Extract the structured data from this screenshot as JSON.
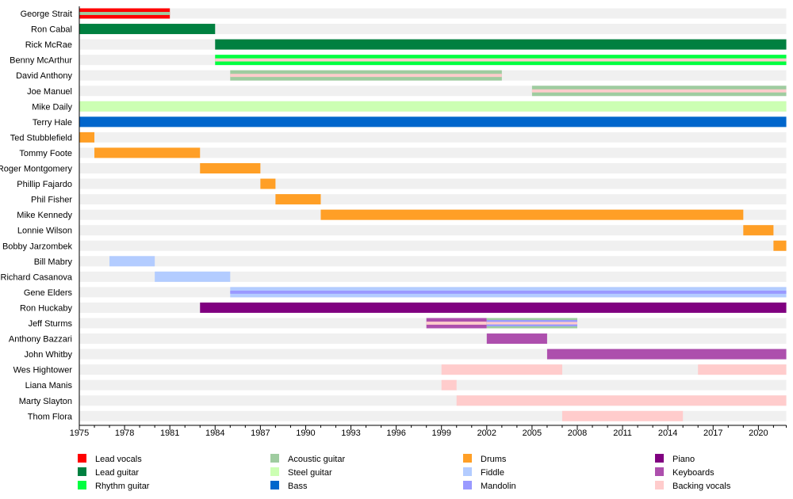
{
  "chart_data": {
    "type": "timeline",
    "title": "",
    "xlabel": "",
    "ylabel": "",
    "xlim": [
      1975,
      2021.85
    ],
    "x_ticks": [
      1975,
      1978,
      1981,
      1984,
      1987,
      1990,
      1993,
      1996,
      1999,
      2002,
      2005,
      2008,
      2011,
      2014,
      2017,
      2020
    ],
    "minor_tick_step": 1,
    "grid": false,
    "legend_position": "bottom",
    "roles": [
      {
        "key": "lead_vocals",
        "label": "Lead vocals",
        "color": "#ff0000"
      },
      {
        "key": "lead_guitar",
        "label": "Lead guitar",
        "color": "#008040"
      },
      {
        "key": "rhythm_guitar",
        "label": "Rhythm guitar",
        "color": "#00ff40"
      },
      {
        "key": "acoustic_guitar",
        "label": "Acoustic guitar",
        "color": "#9fcca0"
      },
      {
        "key": "steel_guitar",
        "label": "Steel guitar",
        "color": "#ccffb3"
      },
      {
        "key": "bass",
        "label": "Bass",
        "color": "#0066cc"
      },
      {
        "key": "drums",
        "label": "Drums",
        "color": "#ff9f26"
      },
      {
        "key": "fiddle",
        "label": "Fiddle",
        "color": "#b3ccff"
      },
      {
        "key": "mandolin",
        "label": "Mandolin",
        "color": "#9999ff"
      },
      {
        "key": "piano",
        "label": "Piano",
        "color": "#800080"
      },
      {
        "key": "keyboards",
        "label": "Keyboards",
        "color": "#ad4fad"
      },
      {
        "key": "backing_vocals",
        "label": "Backing vocals",
        "color": "#ffcccc"
      }
    ],
    "members": [
      {
        "name": "George Strait",
        "spans": [
          {
            "start": 1975,
            "end": 1981,
            "roles": [
              "lead_vocals",
              "acoustic_guitar"
            ]
          }
        ]
      },
      {
        "name": "Ron Cabal",
        "spans": [
          {
            "start": 1975,
            "end": 1984,
            "roles": [
              "lead_guitar"
            ]
          }
        ]
      },
      {
        "name": "Rick McRae",
        "spans": [
          {
            "start": 1984,
            "end": 2021.85,
            "roles": [
              "lead_guitar"
            ]
          }
        ]
      },
      {
        "name": "Benny McArthur",
        "spans": [
          {
            "start": 1984,
            "end": 2021.85,
            "roles": [
              "rhythm_guitar",
              "backing_vocals"
            ]
          }
        ]
      },
      {
        "name": "David Anthony",
        "spans": [
          {
            "start": 1985,
            "end": 2003,
            "roles": [
              "acoustic_guitar",
              "backing_vocals"
            ]
          }
        ]
      },
      {
        "name": "Joe Manuel",
        "spans": [
          {
            "start": 2005,
            "end": 2021.85,
            "roles": [
              "acoustic_guitar",
              "backing_vocals"
            ]
          }
        ]
      },
      {
        "name": "Mike Daily",
        "spans": [
          {
            "start": 1975,
            "end": 2021.85,
            "roles": [
              "steel_guitar"
            ]
          }
        ]
      },
      {
        "name": "Terry Hale",
        "spans": [
          {
            "start": 1975,
            "end": 2021.85,
            "roles": [
              "bass"
            ]
          }
        ]
      },
      {
        "name": "Ted Stubblefield",
        "spans": [
          {
            "start": 1975,
            "end": 1976,
            "roles": [
              "drums"
            ]
          }
        ]
      },
      {
        "name": "Tommy Foote",
        "spans": [
          {
            "start": 1976,
            "end": 1983,
            "roles": [
              "drums"
            ]
          }
        ]
      },
      {
        "name": "Roger Montgomery",
        "spans": [
          {
            "start": 1983,
            "end": 1987,
            "roles": [
              "drums"
            ]
          }
        ]
      },
      {
        "name": "Phillip Fajardo",
        "spans": [
          {
            "start": 1987,
            "end": 1988,
            "roles": [
              "drums"
            ]
          }
        ]
      },
      {
        "name": "Phil Fisher",
        "spans": [
          {
            "start": 1988,
            "end": 1991,
            "roles": [
              "drums"
            ]
          }
        ]
      },
      {
        "name": "Mike Kennedy",
        "spans": [
          {
            "start": 1991,
            "end": 2019,
            "roles": [
              "drums"
            ]
          }
        ]
      },
      {
        "name": "Lonnie Wilson",
        "spans": [
          {
            "start": 2019,
            "end": 2021,
            "roles": [
              "drums"
            ]
          }
        ]
      },
      {
        "name": "Bobby Jarzombek",
        "spans": [
          {
            "start": 2021,
            "end": 2021.85,
            "roles": [
              "drums"
            ]
          }
        ]
      },
      {
        "name": "Bill Mabry",
        "spans": [
          {
            "start": 1977,
            "end": 1980,
            "roles": [
              "fiddle"
            ]
          }
        ]
      },
      {
        "name": "Richard Casanova",
        "spans": [
          {
            "start": 1980,
            "end": 1985,
            "roles": [
              "fiddle"
            ]
          }
        ]
      },
      {
        "name": "Gene Elders",
        "spans": [
          {
            "start": 1985,
            "end": 2021.85,
            "roles": [
              "fiddle",
              "mandolin"
            ]
          }
        ]
      },
      {
        "name": "Ron Huckaby",
        "spans": [
          {
            "start": 1983,
            "end": 2021.85,
            "roles": [
              "piano"
            ]
          }
        ]
      },
      {
        "name": "Jeff Sturms",
        "spans": [
          {
            "start": 1998,
            "end": 2002,
            "roles": [
              "keyboards",
              "backing_vocals"
            ]
          },
          {
            "start": 2002,
            "end": 2008,
            "roles": [
              "acoustic_guitar",
              "mandolin",
              "backing_vocals"
            ]
          }
        ]
      },
      {
        "name": "Anthony Bazzari",
        "spans": [
          {
            "start": 2002,
            "end": 2006,
            "roles": [
              "keyboards"
            ]
          }
        ]
      },
      {
        "name": "John Whitby",
        "spans": [
          {
            "start": 2006,
            "end": 2021.85,
            "roles": [
              "keyboards"
            ]
          }
        ]
      },
      {
        "name": "Wes Hightower",
        "spans": [
          {
            "start": 1999,
            "end": 2007,
            "roles": [
              "backing_vocals"
            ]
          },
          {
            "start": 2016,
            "end": 2021.85,
            "roles": [
              "backing_vocals"
            ]
          }
        ]
      },
      {
        "name": "Liana Manis",
        "spans": [
          {
            "start": 1999,
            "end": 2000,
            "roles": [
              "backing_vocals"
            ]
          }
        ]
      },
      {
        "name": "Marty Slayton",
        "spans": [
          {
            "start": 2000,
            "end": 2021.85,
            "roles": [
              "backing_vocals"
            ]
          }
        ]
      },
      {
        "name": "Thom Flora",
        "spans": [
          {
            "start": 2007,
            "end": 2015,
            "roles": [
              "backing_vocals"
            ]
          }
        ]
      }
    ]
  }
}
